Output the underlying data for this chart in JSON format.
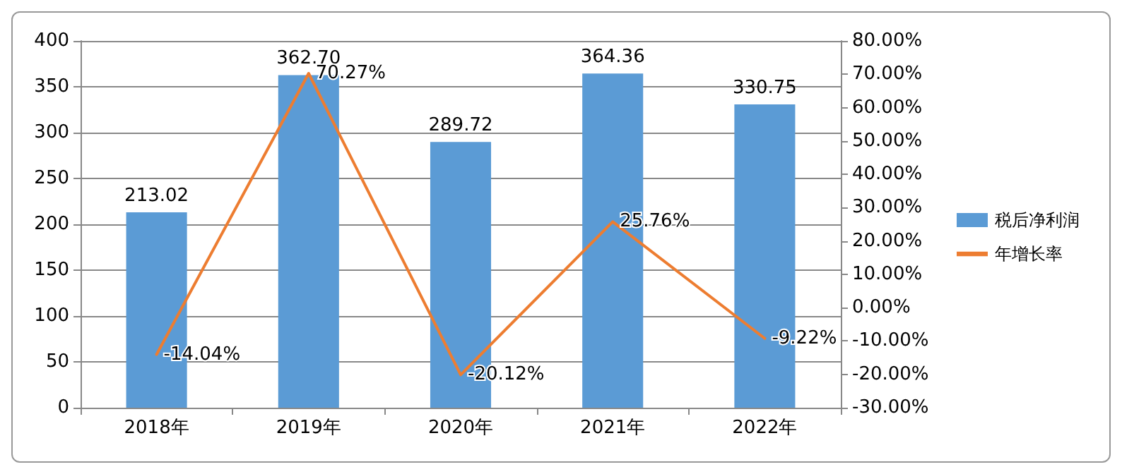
{
  "chart_data": {
    "type": "bar",
    "categories": [
      "2018年",
      "2019年",
      "2020年",
      "2021年",
      "2022年"
    ],
    "series": [
      {
        "name": "税后净利润",
        "color": "#5b9bd5",
        "values": [
          213.02,
          362.7,
          289.72,
          364.36,
          330.75
        ],
        "value_labels": [
          "213.02",
          "362.70",
          "289.72",
          "364.36",
          "330.75"
        ]
      },
      {
        "name": "年增长率",
        "type": "line",
        "axis": "y2",
        "color": "#ed7d31",
        "values": [
          -14.04,
          70.27,
          -20.12,
          25.76,
          -9.22
        ],
        "value_labels": [
          "-14.04%",
          "70.27%",
          "-20.12%",
          "25.76%",
          "-9.22%"
        ]
      }
    ],
    "ylim": [
      0,
      400
    ],
    "yticks": [
      0,
      50,
      100,
      150,
      200,
      250,
      300,
      350,
      400
    ],
    "y2lim": [
      -30,
      80
    ],
    "y2ticks": [
      {
        "value": -30,
        "label": "-30.00%"
      },
      {
        "value": -20,
        "label": "-20.00%"
      },
      {
        "value": -10,
        "label": "-10.00%"
      },
      {
        "value": 0,
        "label": "0.00%"
      },
      {
        "value": 10,
        "label": "10.00%"
      },
      {
        "value": 20,
        "label": "20.00%"
      },
      {
        "value": 30,
        "label": "30.00%"
      },
      {
        "value": 40,
        "label": "40.00%"
      },
      {
        "value": 50,
        "label": "50.00%"
      },
      {
        "value": 60,
        "label": "60.00%"
      },
      {
        "value": 70,
        "label": "70.00%"
      },
      {
        "value": 80,
        "label": "80.00%"
      }
    ],
    "grid": "y",
    "legend": "right",
    "marker": "none"
  }
}
